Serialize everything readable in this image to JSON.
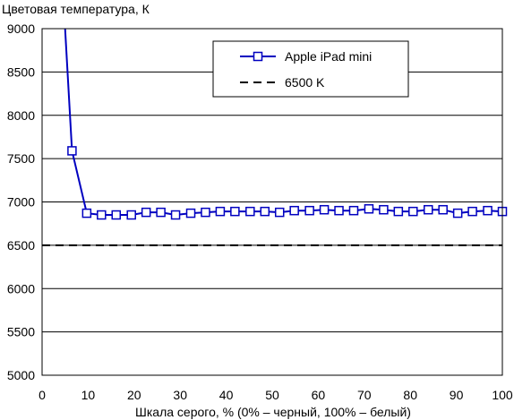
{
  "chart_data": {
    "type": "line",
    "ylabel": "Цветовая температура, К",
    "xlabel": "Шкала серого, % (0% – черный, 100% – белый)",
    "xlim": [
      0,
      100
    ],
    "ylim": [
      5000,
      9000
    ],
    "xticks": [
      0,
      10,
      20,
      30,
      40,
      50,
      60,
      70,
      80,
      90,
      100
    ],
    "yticks": [
      5000,
      5500,
      6000,
      6500,
      7000,
      7500,
      8000,
      8500,
      9000
    ],
    "grid": "horizontal",
    "legend_position": "top-right",
    "series": [
      {
        "name": "Apple iPad mini",
        "color": "#0000c0",
        "marker": "open-square",
        "line_start": [
          5,
          9000
        ],
        "x": [
          6.5,
          9.7,
          12.9,
          16.1,
          19.4,
          22.6,
          25.8,
          29.0,
          32.3,
          35.5,
          38.7,
          41.9,
          45.2,
          48.4,
          51.6,
          54.8,
          58.1,
          61.3,
          64.5,
          67.7,
          71.0,
          74.2,
          77.4,
          80.6,
          83.9,
          87.1,
          90.3,
          93.5,
          96.8,
          100
        ],
        "y": [
          7590,
          6870,
          6850,
          6850,
          6850,
          6880,
          6880,
          6850,
          6870,
          6880,
          6890,
          6890,
          6890,
          6890,
          6880,
          6900,
          6900,
          6910,
          6900,
          6900,
          6920,
          6910,
          6890,
          6890,
          6910,
          6910,
          6870,
          6890,
          6900,
          6890
        ]
      },
      {
        "name": "6500 K",
        "color": "#000000",
        "style": "dashed",
        "y_constant": 6500
      }
    ]
  }
}
